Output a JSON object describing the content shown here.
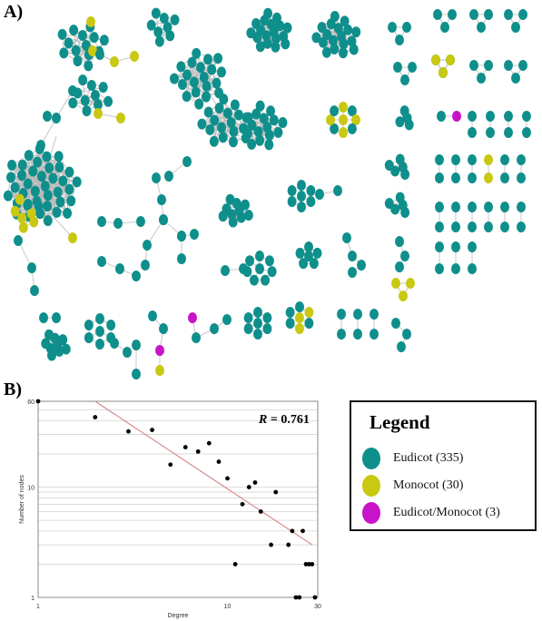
{
  "panels": {
    "a": "A)",
    "b": "B)"
  },
  "colors": {
    "eudicot": "#0f8f8c",
    "monocot": "#c9c812",
    "both": "#c714c9",
    "edge": "#b9b9b9",
    "fit": "#d98c8c"
  },
  "legend": {
    "title": "Legend",
    "items": [
      {
        "label": "Eudicot (335)",
        "color": "#0f8f8c"
      },
      {
        "label": "Monocot (30)",
        "color": "#c9c812"
      },
      {
        "label": "Eudicot/Monocot (3)",
        "color": "#c714c9"
      }
    ]
  },
  "chart_data": {
    "type": "scatter",
    "xlabel": "Degree",
    "ylabel": "Number of nodes",
    "xscale": "log",
    "yscale": "log",
    "xlim": [
      1,
      30
    ],
    "ylim": [
      1,
      60
    ],
    "xticks": [
      "1",
      "10",
      "30"
    ],
    "yticks": [
      "1",
      "10",
      "60"
    ],
    "annotation": "R = 0.761",
    "fit_line": {
      "x": [
        2,
        28
      ],
      "y": [
        60,
        3
      ]
    },
    "points": [
      [
        1,
        60
      ],
      [
        2,
        43
      ],
      [
        3,
        32
      ],
      [
        4,
        33
      ],
      [
        5,
        16
      ],
      [
        6,
        23
      ],
      [
        7,
        21
      ],
      [
        8,
        25
      ],
      [
        9,
        17
      ],
      [
        10,
        12
      ],
      [
        11,
        2
      ],
      [
        12,
        7
      ],
      [
        13,
        10
      ],
      [
        14,
        11
      ],
      [
        15,
        6
      ],
      [
        17,
        3
      ],
      [
        18,
        9
      ],
      [
        21,
        3
      ],
      [
        22,
        4
      ],
      [
        23,
        1
      ],
      [
        24,
        1
      ],
      [
        25,
        4
      ],
      [
        26,
        2
      ],
      [
        27,
        2
      ],
      [
        28,
        2
      ],
      [
        29,
        1
      ]
    ]
  }
}
